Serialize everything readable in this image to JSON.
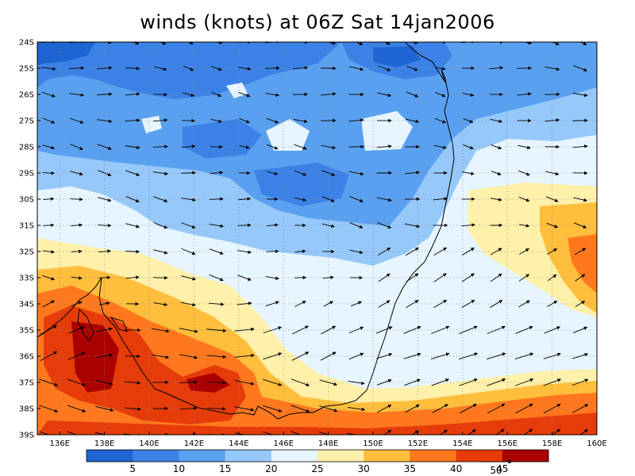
{
  "title": "winds (knots) at 06Z Sat 14jan2006",
  "map": {
    "lat_labels": [
      "24S",
      "25S",
      "26S",
      "27S",
      "28S",
      "29S",
      "30S",
      "31S",
      "32S",
      "33S",
      "34S",
      "35S",
      "36S",
      "37S",
      "38S",
      "39S"
    ],
    "lon_labels": [
      "136E",
      "138E",
      "140E",
      "142E",
      "144E",
      "146E",
      "148E",
      "150E",
      "152E",
      "154E",
      "156E",
      "158E",
      "160E"
    ],
    "lat_range": [
      -39,
      -24
    ],
    "lon_range": [
      135,
      160
    ],
    "grid": "dotted"
  },
  "colorbar": {
    "tick_labels": [
      "5",
      "10",
      "15",
      "20",
      "25",
      "30",
      "35",
      "40",
      "45"
    ],
    "colors": [
      "#1e64d2",
      "#3c82e6",
      "#5aa0f0",
      "#96c8fa",
      "#e6f5ff",
      "#fff0aa",
      "#ffbe3c",
      "#ff781e",
      "#e63c0a",
      "#aa0000"
    ],
    "reference_vector_label": "50"
  },
  "coastline_color": "#000000"
}
